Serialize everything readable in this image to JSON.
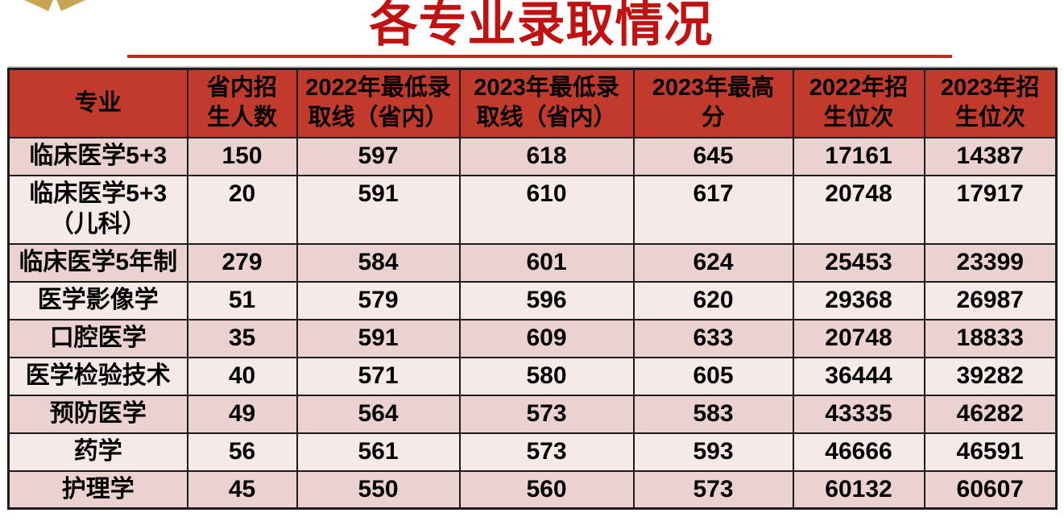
{
  "page": {
    "title": "各专业录取情况",
    "colors": {
      "title_color": "#C11212",
      "underline": "#C22A20",
      "header_bg": "#C23A2C",
      "row_dark": "#EBD1D0",
      "row_light": "#F6EAE9",
      "grid": "#1C1C1C",
      "logo_gold": "#C9A455"
    }
  },
  "table": {
    "columns": [
      {
        "line1": "专业",
        "line2": ""
      },
      {
        "line1": "省内招",
        "line2": "生人数"
      },
      {
        "line1": "2022年最低录",
        "line2": "取线（省内）"
      },
      {
        "line1": "2023年最低录",
        "line2": "取线（省内）"
      },
      {
        "line1": "2023年最高",
        "line2": "分"
      },
      {
        "line1": "2022年招",
        "line2": "生位次"
      },
      {
        "line1": "2023年招",
        "line2": "生位次"
      }
    ],
    "rows": [
      {
        "major": [
          "临床医学5+3"
        ],
        "values": [
          "150",
          "597",
          "618",
          "645",
          "17161",
          "14387"
        ]
      },
      {
        "major": [
          "临床医学5+3",
          "（儿科）"
        ],
        "values": [
          "20",
          "591",
          "610",
          "617",
          "20748",
          "17917"
        ]
      },
      {
        "major": [
          "临床医学5年制"
        ],
        "values": [
          "279",
          "584",
          "601",
          "624",
          "25453",
          "23399"
        ]
      },
      {
        "major": [
          "医学影像学"
        ],
        "values": [
          "51",
          "579",
          "596",
          "620",
          "29368",
          "26987"
        ]
      },
      {
        "major": [
          "口腔医学"
        ],
        "values": [
          "35",
          "591",
          "609",
          "633",
          "20748",
          "18833"
        ]
      },
      {
        "major": [
          "医学检验技术"
        ],
        "values": [
          "40",
          "571",
          "580",
          "605",
          "36444",
          "39282"
        ]
      },
      {
        "major": [
          "预防医学"
        ],
        "values": [
          "49",
          "564",
          "573",
          "583",
          "43335",
          "46282"
        ]
      },
      {
        "major": [
          "药学"
        ],
        "values": [
          "56",
          "561",
          "573",
          "593",
          "46666",
          "46591"
        ]
      },
      {
        "major": [
          "护理学"
        ],
        "values": [
          "45",
          "550",
          "560",
          "573",
          "60132",
          "60607"
        ]
      }
    ]
  }
}
